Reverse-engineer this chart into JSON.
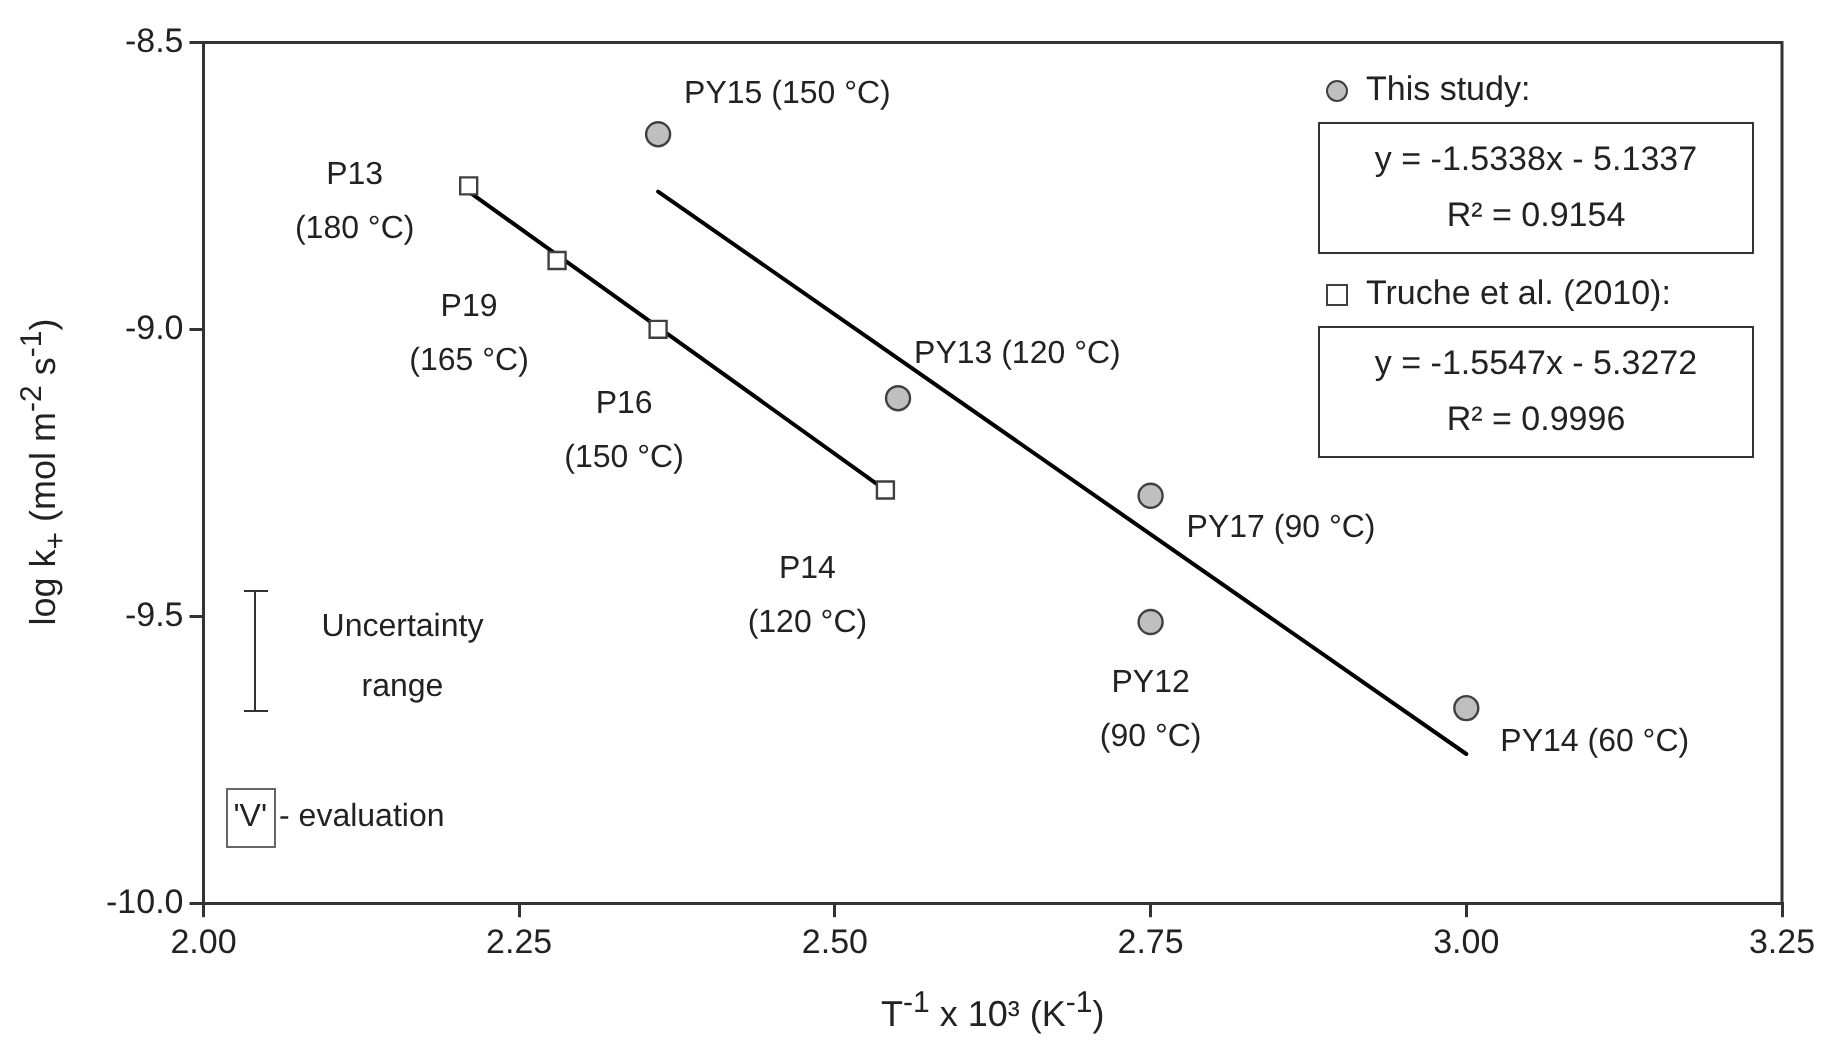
{
  "chart_data": {
    "type": "scatter",
    "xlabel": "T$^{-1}$ x 10³ (K$^{-1}$)",
    "ylabel": "log k$_{+}$ (mol m$^{-2}$ s$^{-1}$)",
    "xlim": [
      2.0,
      3.25
    ],
    "xticks": [
      {
        "value": 2.0,
        "label": "2.00"
      },
      {
        "value": 2.25,
        "label": "2.25"
      },
      {
        "value": 2.5,
        "label": "2.50"
      },
      {
        "value": 2.75,
        "label": "2.75"
      },
      {
        "value": 3.0,
        "label": "3.00"
      },
      {
        "value": 3.25,
        "label": "3.25"
      }
    ],
    "ylim": [
      -10.0,
      -8.5
    ],
    "yticks": [
      {
        "value": -10.0,
        "label": "-10.0"
      },
      {
        "value": -9.5,
        "label": "-9.5"
      },
      {
        "value": -9.0,
        "label": "-9.0"
      },
      {
        "value": -8.5,
        "label": "-8.5"
      }
    ],
    "grid": false,
    "legend": "top right",
    "series": [
      {
        "name": "This study:",
        "marker": "circle",
        "color": "#bfbfbf",
        "x": [
          2.36,
          2.55,
          2.75,
          2.75,
          3.0
        ],
        "values": [
          -8.66,
          -9.12,
          -9.29,
          -9.51,
          -9.66
        ]
      },
      {
        "name": "Truche et al. (2010):",
        "marker": "square",
        "color": "#ffffff",
        "x": [
          2.21,
          2.28,
          2.36,
          2.54
        ],
        "values": [
          -8.75,
          -8.88,
          -9.0,
          -9.28
        ]
      },
      {
        "type": "line",
        "color": "#000000",
        "x": [
          2.36,
          3.0
        ],
        "values": [
          -8.76,
          -9.74
        ]
      },
      {
        "type": "line",
        "color": "#000000",
        "x": [
          2.21,
          2.54
        ],
        "values": [
          -8.76,
          -9.28
        ]
      }
    ],
    "annotations": [
      {
        "text": "PY15 (150 °C)",
        "x": 2.36,
        "y": -8.66
      },
      {
        "text": "PY13 (120 °C)",
        "x": 2.55,
        "y": -9.12
      },
      {
        "text": "PY17 (90 °C)",
        "x": 2.75,
        "y": -9.29
      },
      {
        "text": "PY12\n(90 °C)",
        "x": 2.75,
        "y": -9.51
      },
      {
        "text": "PY14 (60 °C)",
        "x": 3.0,
        "y": -9.66
      },
      {
        "text": "P13\n(180 °C)",
        "x": 2.21,
        "y": -8.75
      },
      {
        "text": "P19\n(165 °C)",
        "x": 2.28,
        "y": -8.88
      },
      {
        "text": "P16\n(150 °C)",
        "x": 2.36,
        "y": -9.0
      },
      {
        "text": "P14\n(120 °C)",
        "x": 2.54,
        "y": -9.28
      },
      "y = -1.5338x - 5.1337",
      "R² = 0.9154",
      "y = -1.5547x - 5.3272",
      "R² = 0.9996",
      "Uncertainty range",
      "'V'",
      "- evaluation"
    ]
  }
}
